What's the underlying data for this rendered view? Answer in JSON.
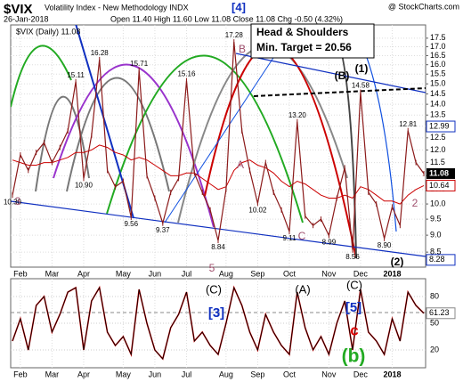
{
  "chart_data": [
    {
      "type": "line",
      "log_scale": true,
      "grid": true,
      "symbol": "$VIX",
      "title": "Volatility Index - New Methodology INDX",
      "watermark": "@ StockCharts.com",
      "date": "26-Jan-2018",
      "quote": "Open 11.40 High 11.60 Low 11.08 Close 11.08 Chg -0.50 (4.32%)",
      "callout": [
        "Head & Shoulders",
        "Min. Target = 20.56"
      ],
      "annotations": [
        "[4]",
        "B",
        "(B)",
        "(1)",
        "A",
        "C",
        "2",
        "3",
        "5",
        "(2)"
      ],
      "categories": [
        null,
        "Feb",
        null,
        null,
        null,
        "Mar",
        null,
        null,
        null,
        "Apr",
        null,
        null,
        null,
        null,
        "May",
        null,
        null,
        null,
        "Jun",
        null,
        null,
        null,
        "Jul",
        null,
        null,
        null,
        null,
        "Aug",
        null,
        null,
        null,
        "Sep",
        null,
        null,
        null,
        "Oct",
        null,
        null,
        null,
        null,
        "Nov",
        null,
        null,
        null,
        "Dec",
        null,
        null,
        null,
        "2018",
        null,
        null,
        null,
        null
      ],
      "series": [
        {
          "name": "$VIX (Daily) 11.08",
          "color": "#8b1a1a",
          "values": [
            10.3,
            11.8,
            11.2,
            11.9,
            12.3,
            11.5,
            12.1,
            12.8,
            15.11,
            10.9,
            12.6,
            16.28,
            11.2,
            10.6,
            10.8,
            9.56,
            15.71,
            11.0,
            10.2,
            9.37,
            10.4,
            10.9,
            15.16,
            11.1,
            10.4,
            9.8,
            8.84,
            10.5,
            17.28,
            12.8,
            11.2,
            10.02,
            11.5,
            10.4,
            9.8,
            9.11,
            13.2,
            9.6,
            9.3,
            9.5,
            8.99,
            10.2,
            11.3,
            8.56,
            14.58,
            10.4,
            10.0,
            8.9,
            9.9,
            9.3,
            12.81,
            11.5,
            11.08
          ],
          "value_labels": [
            "10.30",
            null,
            null,
            null,
            null,
            null,
            null,
            null,
            "15.11",
            "10.90",
            null,
            "16.28",
            null,
            null,
            null,
            "9.56",
            "15.71",
            null,
            null,
            "9.37",
            null,
            null,
            "15.16",
            null,
            null,
            null,
            "8.84",
            null,
            "17.28",
            null,
            null,
            "10.02",
            null,
            null,
            null,
            "9.11",
            "13.20",
            null,
            null,
            null,
            "8.99",
            null,
            null,
            "8.56",
            "14.58",
            null,
            null,
            "8.90",
            null,
            null,
            "12.81",
            null,
            null
          ]
        }
      ],
      "overlay": {
        "color": "#cc0000",
        "values": [
          11.6,
          11.5,
          11.4,
          11.4,
          11.5,
          11.5,
          11.6,
          11.7,
          11.9,
          11.9,
          12.0,
          12.2,
          12.1,
          11.9,
          11.8,
          11.6,
          11.7,
          11.6,
          11.4,
          11.2,
          11.0,
          11.0,
          11.1,
          11.1,
          10.9,
          10.7,
          10.5,
          10.6,
          11.2,
          11.5,
          11.6,
          11.4,
          11.3,
          11.1,
          10.8,
          10.6,
          10.8,
          10.7,
          10.5,
          10.3,
          10.2,
          10.2,
          10.3,
          10.2,
          10.6,
          10.5,
          10.3,
          10.1,
          10.1,
          10.0,
          10.3,
          10.5,
          10.64
        ]
      },
      "band_labels": [
        12.99,
        8.28
      ],
      "ylim": [
        8.08,
        18.3
      ],
      "yticks": [
        8.5,
        {
          "value": 9,
          "label": "9.0"
        },
        9.5,
        {
          "value": 10,
          "label": "10.0"
        },
        10.5,
        {
          "value": 11,
          "label": "11.0"
        },
        11.5,
        {
          "value": 12,
          "label": "12.0"
        },
        12.5,
        {
          "value": 13,
          "label": "13.0"
        },
        13.5,
        {
          "value": 14,
          "label": "14.0"
        },
        14.5,
        {
          "value": 15,
          "label": "15.0"
        },
        15.5,
        {
          "value": 16,
          "label": "16.0"
        },
        16.5,
        {
          "value": 17,
          "label": "17.0"
        },
        17.5
      ]
    },
    {
      "type": "line",
      "color": "#000000",
      "annotations": [
        "(C)",
        "(A)",
        "(C)",
        "[3]",
        "[5]",
        "c",
        "(b)"
      ],
      "values": [
        30,
        55,
        20,
        70,
        80,
        40,
        60,
        85,
        90,
        20,
        75,
        90,
        40,
        25,
        35,
        15,
        88,
        50,
        20,
        10,
        45,
        60,
        85,
        30,
        40,
        25,
        15,
        50,
        90,
        70,
        40,
        20,
        60,
        40,
        25,
        15,
        85,
        45,
        20,
        35,
        15,
        50,
        75,
        20,
        88,
        40,
        30,
        15,
        55,
        30,
        85,
        70,
        61.23
      ],
      "ylim": [
        0,
        100
      ],
      "yticks": [
        20,
        50,
        80
      ]
    }
  ]
}
